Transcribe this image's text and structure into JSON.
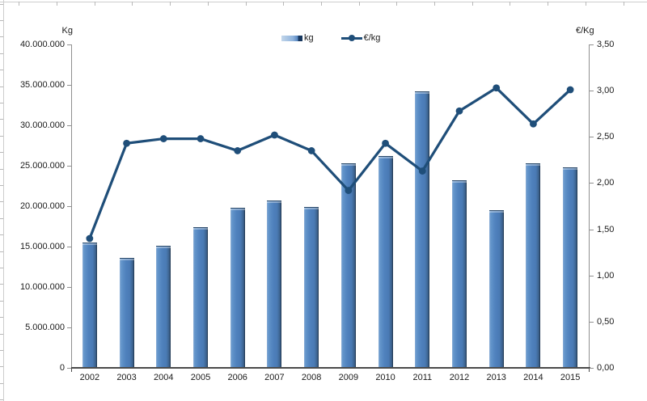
{
  "chart_data": {
    "type": "bar",
    "title": "",
    "categories": [
      "2002",
      "2003",
      "2004",
      "2005",
      "2006",
      "2007",
      "2008",
      "2009",
      "2010",
      "2011",
      "2012",
      "2013",
      "2014",
      "2015"
    ],
    "series": [
      {
        "name": "kg",
        "type": "bar",
        "axis": "left",
        "values": [
          15500000,
          13600000,
          15100000,
          17400000,
          19800000,
          20700000,
          19900000,
          25300000,
          26200000,
          34200000,
          23200000,
          19500000,
          25300000,
          24800000
        ]
      },
      {
        "name": "€/kg",
        "type": "line",
        "axis": "right",
        "values": [
          1.4,
          2.43,
          2.48,
          2.48,
          2.35,
          2.52,
          2.35,
          1.92,
          2.43,
          2.13,
          2.78,
          3.03,
          2.64,
          3.01
        ]
      }
    ],
    "y_left": {
      "title": "Kg",
      "min": 0,
      "max": 40000000,
      "tick_labels": [
        "40.000.000",
        "35.000.000",
        "30.000.000",
        "25.000.000",
        "20.000.000",
        "15.000.000",
        "10.000.000",
        "5.000.000",
        "0"
      ]
    },
    "y_right": {
      "title": "€/Kg",
      "min": 0,
      "max": 3.5,
      "tick_labels": [
        "3,50",
        "3,00",
        "2,50",
        "2,00",
        "1,50",
        "1,00",
        "0,50",
        "0,00"
      ]
    },
    "legend": {
      "position": "top-center",
      "items": [
        "kg",
        "€/kg"
      ]
    },
    "grid": false
  },
  "colors": {
    "bar_fill": "#4f81bd",
    "bar_edge": "#2b4a6b",
    "line": "#1f4e79",
    "axis_side": "#909090",
    "axis_bottom": "#4a4a4a",
    "sheet_grid": "#cccccc",
    "text": "#1a1a1a"
  }
}
